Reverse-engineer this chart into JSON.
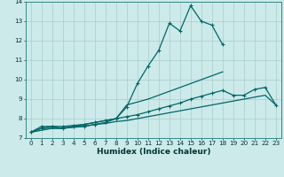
{
  "xlabel": "Humidex (Indice chaleur)",
  "background_color": "#cceaea",
  "grid_color": "#aacccc",
  "line_color": "#006666",
  "x_values": [
    0,
    1,
    2,
    3,
    4,
    5,
    6,
    7,
    8,
    9,
    10,
    11,
    12,
    13,
    14,
    15,
    16,
    17,
    18,
    19,
    20,
    21,
    22,
    23
  ],
  "series1": [
    7.3,
    7.6,
    7.6,
    7.5,
    7.6,
    7.6,
    7.7,
    7.8,
    8.0,
    8.6,
    9.8,
    10.7,
    11.5,
    12.9,
    12.5,
    13.8,
    13.0,
    12.8,
    11.8,
    null,
    null,
    null,
    null,
    null
  ],
  "series2": [
    7.3,
    7.5,
    7.5,
    7.5,
    7.6,
    7.7,
    7.8,
    7.9,
    8.0,
    8.7,
    8.85,
    9.0,
    9.2,
    9.4,
    9.6,
    9.8,
    10.0,
    10.2,
    10.4,
    null,
    null,
    null,
    null,
    null
  ],
  "series3": [
    7.3,
    7.5,
    7.6,
    7.6,
    7.65,
    7.7,
    7.8,
    7.9,
    8.0,
    8.1,
    8.2,
    8.35,
    8.5,
    8.65,
    8.8,
    9.0,
    9.15,
    9.3,
    9.45,
    9.2,
    9.2,
    9.5,
    9.6,
    8.7
  ],
  "series4": [
    7.3,
    7.4,
    7.5,
    7.5,
    7.55,
    7.6,
    7.7,
    7.75,
    7.85,
    7.9,
    8.0,
    8.1,
    8.2,
    8.3,
    8.4,
    8.5,
    8.6,
    8.7,
    8.8,
    8.9,
    9.0,
    9.1,
    9.2,
    8.7
  ],
  "ylim": [
    7.0,
    14.0
  ],
  "xlim": [
    -0.5,
    23.5
  ],
  "yticks": [
    7,
    8,
    9,
    10,
    11,
    12,
    13,
    14
  ],
  "xticks": [
    0,
    1,
    2,
    3,
    4,
    5,
    6,
    7,
    8,
    9,
    10,
    11,
    12,
    13,
    14,
    15,
    16,
    17,
    18,
    19,
    20,
    21,
    22,
    23
  ],
  "tick_fontsize": 5.2,
  "xlabel_fontsize": 6.5
}
